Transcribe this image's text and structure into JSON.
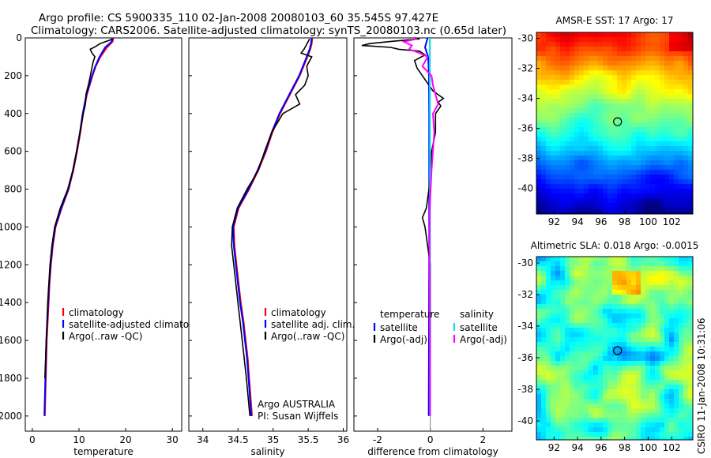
{
  "header": {
    "line1": "Argo profile: CS 5900335_110 02-Jan-2008 20080103_60 35.545S 97.427E",
    "line2": "Climatology: CARS2006. Satellite-adjusted climatology: synTS_20080103.nc (0.65d later)"
  },
  "stamp": "CSIRO 11-Jan-2008 10:31:06",
  "credits": {
    "line1": "Argo AUSTRALIA",
    "line2": "PI: Susan Wijffels"
  },
  "colors": {
    "clim": "#ff0000",
    "sat": "#0000ff",
    "argo": "#000000",
    "sat_diff": "#00e5ee",
    "argo_diff": "#ff00ff"
  },
  "chart_data": [
    {
      "type": "line",
      "id": "temperature",
      "xlabel": "temperature",
      "ylabel": "",
      "xlim": [
        -1.5,
        32
      ],
      "ylim": [
        2080,
        0
      ],
      "xticks": [
        0,
        10,
        20,
        30
      ],
      "yticks": [
        0,
        200,
        400,
        600,
        800,
        1000,
        1200,
        1400,
        1600,
        1800,
        2000
      ],
      "legend": [
        "climatology",
        "satellite-adjusted climatology",
        "Argo(..raw -QC)"
      ],
      "series": [
        {
          "name": "climatology",
          "color_key": "clim",
          "depth": [
            0,
            20,
            50,
            100,
            150,
            200,
            300,
            400,
            500,
            600,
            700,
            800,
            900,
            1000,
            1100,
            1200,
            1300,
            1400,
            1500,
            1600,
            1700,
            1800,
            1900,
            2000
          ],
          "values": [
            17.4,
            17.2,
            16.0,
            14.6,
            13.6,
            12.9,
            11.7,
            10.9,
            10.3,
            9.6,
            8.8,
            7.8,
            6.3,
            5.0,
            4.4,
            4.0,
            3.7,
            3.5,
            3.3,
            3.1,
            3.0,
            2.9,
            2.8,
            2.7
          ]
        },
        {
          "name": "satellite-adjusted climatology",
          "color_key": "sat",
          "depth": [
            0,
            20,
            50,
            100,
            150,
            200,
            300,
            400,
            500,
            600,
            700,
            800,
            900,
            1000,
            1100,
            1200,
            1300,
            1400,
            1500,
            1600,
            1700,
            1800,
            1900,
            2000
          ],
          "values": [
            17.2,
            17.0,
            15.6,
            14.4,
            13.5,
            12.8,
            11.6,
            10.8,
            10.2,
            9.5,
            8.7,
            7.7,
            6.2,
            4.9,
            4.3,
            3.9,
            3.6,
            3.4,
            3.2,
            3.0,
            2.9,
            2.8,
            2.7,
            2.6
          ]
        },
        {
          "name": "Argo(..raw -QC)",
          "color_key": "argo",
          "depth": [
            5,
            10,
            30,
            45,
            60,
            80,
            100,
            130,
            180,
            240,
            300,
            350,
            400,
            500,
            600,
            700,
            800,
            900,
            1000,
            1100,
            1200,
            1400,
            1600,
            1800
          ],
          "values": [
            17.0,
            16.8,
            14.5,
            13.6,
            12.4,
            12.8,
            13.4,
            13.0,
            12.6,
            12.1,
            11.5,
            11.4,
            10.9,
            10.2,
            9.5,
            8.7,
            7.6,
            6.0,
            4.8,
            4.2,
            3.8,
            3.3,
            3.0,
            2.7
          ]
        }
      ]
    },
    {
      "type": "line",
      "id": "salinity",
      "xlabel": "salinity",
      "ylabel": "",
      "xlim": [
        33.8,
        36.05
      ],
      "ylim": [
        2080,
        0
      ],
      "xticks": [
        34,
        34.5,
        35,
        35.5,
        36
      ],
      "yticks": [],
      "legend": [
        "climatology",
        "satellite adj. clim.",
        "Argo(..raw -QC)"
      ],
      "series": [
        {
          "name": "climatology",
          "color_key": "clim",
          "depth": [
            0,
            30,
            60,
            100,
            200,
            300,
            400,
            500,
            600,
            700,
            800,
            900,
            1000,
            1100,
            1200,
            1300,
            1400,
            1500,
            1600,
            1700,
            1800,
            1900,
            2000
          ],
          "values": [
            35.56,
            35.55,
            35.53,
            35.49,
            35.38,
            35.24,
            35.1,
            34.99,
            34.9,
            34.79,
            34.66,
            34.51,
            34.44,
            34.45,
            34.48,
            34.51,
            34.54,
            34.58,
            34.61,
            34.64,
            34.66,
            34.68,
            34.7
          ]
        },
        {
          "name": "satellite adj. clim.",
          "color_key": "sat",
          "depth": [
            0,
            30,
            60,
            100,
            200,
            300,
            400,
            500,
            600,
            700,
            800,
            900,
            1000,
            1100,
            1200,
            1300,
            1400,
            1500,
            1600,
            1700,
            1800,
            1900,
            2000
          ],
          "values": [
            35.55,
            35.54,
            35.52,
            35.48,
            35.37,
            35.23,
            35.09,
            34.98,
            34.89,
            34.78,
            34.65,
            34.5,
            34.43,
            34.44,
            34.47,
            34.5,
            34.53,
            34.57,
            34.6,
            34.63,
            34.65,
            34.67,
            34.69
          ]
        },
        {
          "name": "Argo(..raw -QC)",
          "color_key": "argo",
          "depth": [
            5,
            20,
            40,
            60,
            80,
            100,
            150,
            200,
            250,
            300,
            350,
            400,
            500,
            600,
            700,
            800,
            900,
            1000,
            1100,
            1200,
            1300,
            1400,
            1600,
            1800,
            2000
          ],
          "values": [
            35.52,
            35.5,
            35.47,
            35.44,
            35.4,
            35.55,
            35.48,
            35.5,
            35.45,
            35.32,
            35.38,
            35.14,
            34.98,
            34.88,
            34.79,
            34.63,
            34.49,
            34.42,
            34.41,
            34.44,
            34.47,
            34.5,
            34.56,
            34.62,
            34.67
          ]
        }
      ]
    },
    {
      "type": "line",
      "id": "difference",
      "xlabel": "difference from climatology",
      "ylabel": "",
      "xlim": [
        -2.9,
        3.1
      ],
      "ylim": [
        2080,
        0
      ],
      "xticks": [
        -2,
        0,
        2
      ],
      "yticks": [],
      "legend_left_title": "temperature",
      "legend_right_title": "salinity",
      "legend": [
        "satellite",
        "Argo(-adj)",
        "satellite",
        "Argo(-adj)"
      ],
      "series": [
        {
          "name": "temperature satellite",
          "color_key": "sat",
          "depth": [
            0,
            50,
            100,
            200,
            400,
            800,
            1200,
            1600,
            2000
          ],
          "values": [
            -0.1,
            -0.2,
            -0.08,
            -0.05,
            -0.04,
            -0.04,
            -0.04,
            -0.05,
            -0.06
          ]
        },
        {
          "name": "temperature Argo(-adj)",
          "color_key": "argo",
          "depth": [
            5,
            20,
            30,
            40,
            50,
            60,
            70,
            90,
            120,
            160,
            200,
            280,
            320,
            340,
            360,
            400,
            500,
            600,
            700,
            800,
            900,
            950,
            1000,
            1100,
            1200,
            1600,
            2000
          ],
          "values": [
            -0.4,
            -1.6,
            -2.3,
            -2.6,
            -1.5,
            -1.2,
            -0.4,
            -0.2,
            -0.6,
            -0.5,
            -0.3,
            0.1,
            0.5,
            0.3,
            0.4,
            0.2,
            0.2,
            0.05,
            0.02,
            -0.05,
            -0.15,
            -0.3,
            -0.2,
            -0.1,
            0.0,
            0.0,
            0.0
          ]
        },
        {
          "name": "salinity satellite",
          "color_key": "sat_diff",
          "depth": [
            0,
            100,
            500,
            1000,
            1500,
            2000
          ],
          "values": [
            -0.02,
            -0.02,
            -0.01,
            -0.01,
            -0.01,
            -0.01
          ]
        },
        {
          "name": "salinity Argo(-adj)",
          "color_key": "argo_diff",
          "depth": [
            5,
            20,
            40,
            60,
            80,
            100,
            150,
            200,
            250,
            300,
            350,
            400,
            500,
            700,
            900,
            1100,
            1300,
            1500,
            1700,
            1900,
            2000
          ],
          "values": [
            -0.5,
            -1.0,
            -0.7,
            -0.8,
            -0.4,
            -0.1,
            -0.3,
            0.05,
            0.1,
            0.2,
            0.3,
            0.1,
            0.15,
            0.05,
            -0.02,
            -0.03,
            -0.02,
            -0.02,
            -0.01,
            -0.01,
            -0.01
          ]
        }
      ]
    },
    {
      "type": "heatmap",
      "id": "sst_map",
      "title": "AMSR-E SST: 17 Argo: 17",
      "xlim": [
        90.5,
        103.8
      ],
      "ylim": [
        -41.7,
        -29.6
      ],
      "xticks": [
        92,
        94,
        96,
        98,
        100,
        102
      ],
      "yticks": [
        -30,
        -32,
        -34,
        -36,
        -38,
        -40
      ],
      "marker": {
        "lon": 97.4,
        "lat": -35.55
      }
    },
    {
      "type": "heatmap",
      "id": "sla_map",
      "title": "Altimetric SLA: 0.018 Argo: -0.0015",
      "xlim": [
        90.5,
        103.8
      ],
      "ylim": [
        -41.2,
        -29.6
      ],
      "xticks": [
        92,
        94,
        96,
        98,
        100,
        102
      ],
      "yticks": [
        -30,
        -32,
        -34,
        -36,
        -38,
        -40
      ],
      "marker": {
        "lon": 97.4,
        "lat": -35.55
      }
    }
  ]
}
